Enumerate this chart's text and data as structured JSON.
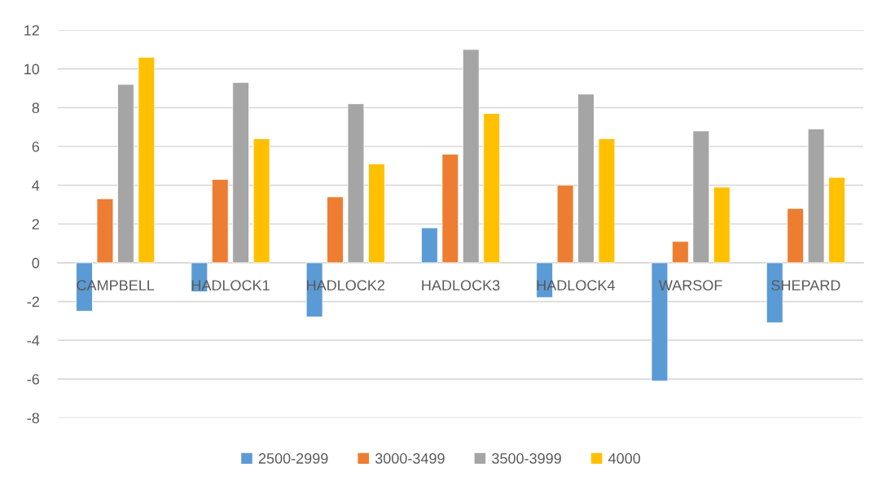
{
  "chart_data": {
    "type": "bar",
    "categories": [
      "CAMPBELL",
      "HADLOCK1",
      "HADLOCK2",
      "HADLOCK3",
      "HADLOCK4",
      "WARSOF",
      "SHEPARD"
    ],
    "series": [
      {
        "name": "2500-2999",
        "color": "#5b9bd5",
        "values": [
          -2.5,
          -1.5,
          -2.8,
          1.8,
          -1.8,
          -6.1,
          -3.1
        ]
      },
      {
        "name": "3000-3499",
        "color": "#ed7d31",
        "values": [
          3.3,
          4.3,
          3.4,
          5.6,
          4.0,
          1.1,
          2.8
        ]
      },
      {
        "name": "3500-3999",
        "color": "#a5a5a5",
        "values": [
          9.2,
          9.3,
          8.2,
          11,
          8.7,
          6.8,
          6.9
        ]
      },
      {
        "name": "4000",
        "color": "#ffc000",
        "values": [
          10.6,
          6.4,
          5.1,
          7.7,
          6.4,
          3.9,
          4.4
        ]
      }
    ],
    "ylim": [
      -8,
      12
    ],
    "yticks": [
      -8,
      -6,
      -4,
      -2,
      0,
      2,
      4,
      6,
      8,
      10,
      12
    ],
    "grid": "y",
    "legend": "bottom"
  }
}
